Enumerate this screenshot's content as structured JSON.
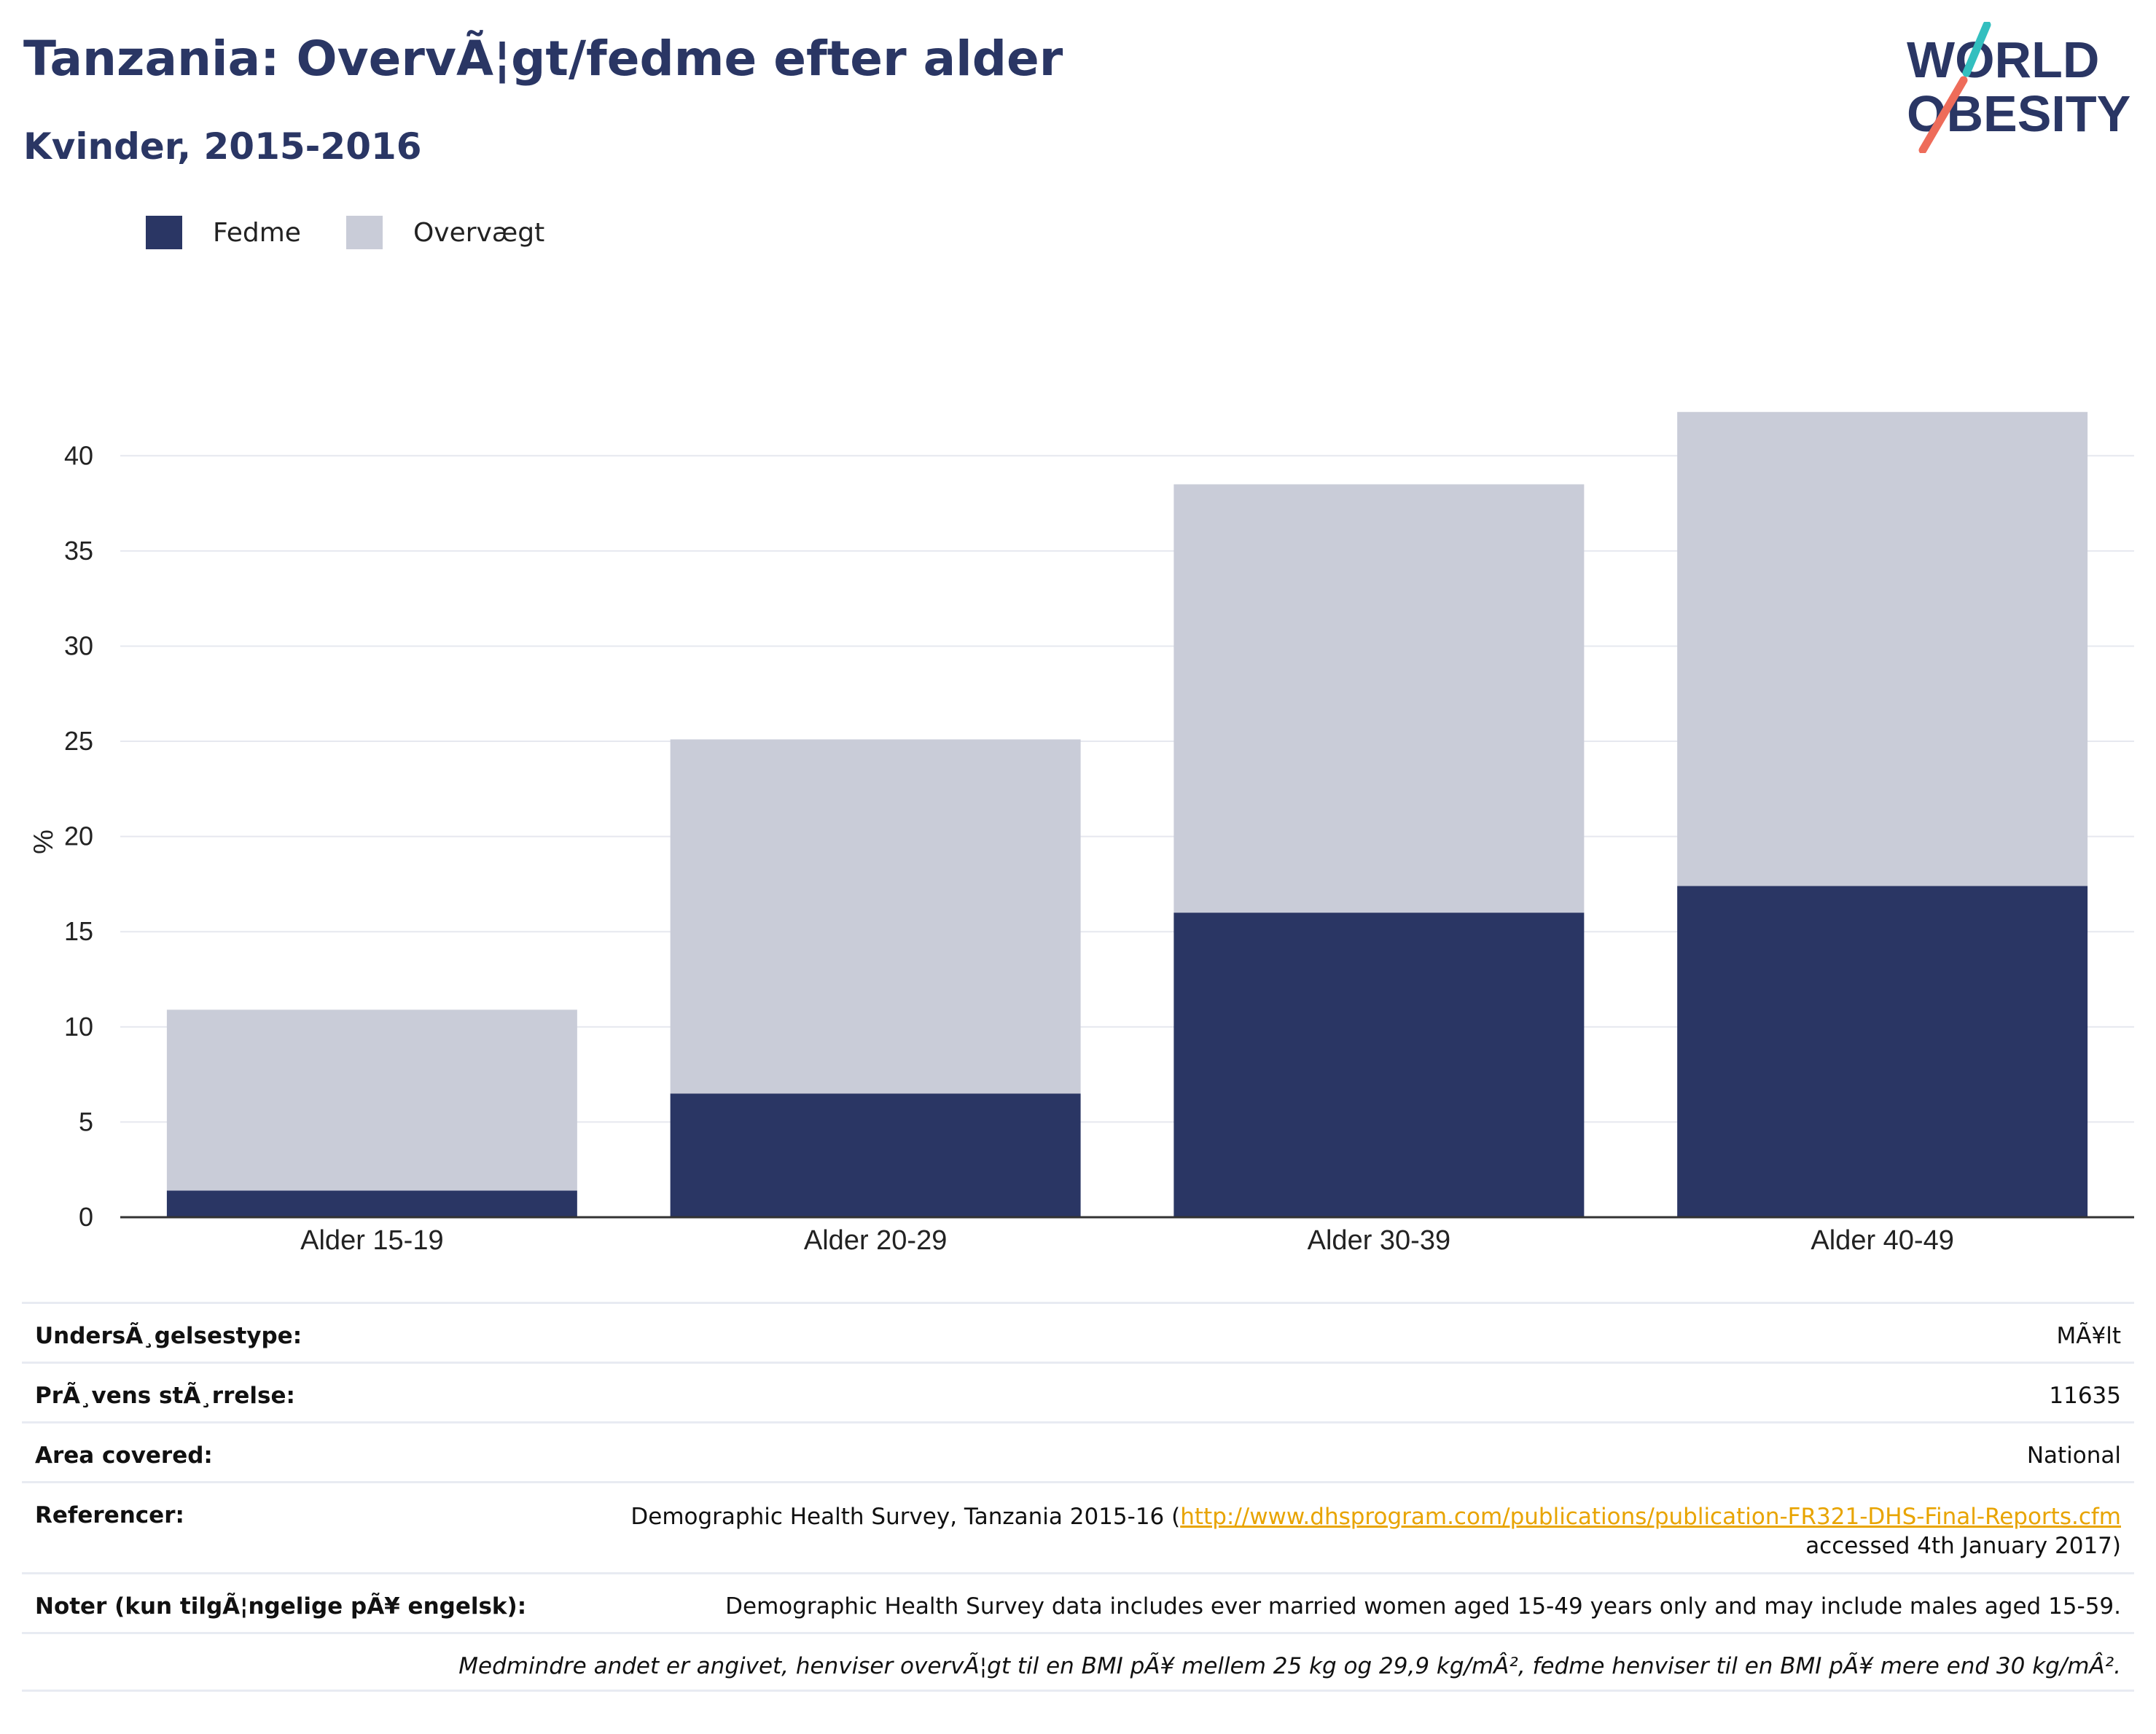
{
  "header": {
    "title": "Tanzania: OvervÃ¦gt/fedme efter alder",
    "subtitle": "Kvinder, 2015-2016",
    "logo_text_line1": "WORLD",
    "logo_text_line2": "OBESITY"
  },
  "legend": {
    "items": [
      {
        "label": "Fedme",
        "color": "#2a3664"
      },
      {
        "label": "Overvægt",
        "color": "#c9ccd8"
      }
    ]
  },
  "chart_data": {
    "type": "bar",
    "stacked": true,
    "categories": [
      "Alder 15-19",
      "Alder 20-29",
      "Alder 30-39",
      "Alder 40-49"
    ],
    "series": [
      {
        "name": "Fedme",
        "color": "#2a3664",
        "values": [
          1.4,
          6.5,
          16.0,
          17.4
        ]
      },
      {
        "name": "Overvægt",
        "color": "#c9ccd8",
        "values": [
          9.5,
          18.6,
          22.5,
          24.9
        ]
      }
    ],
    "ylabel": "%",
    "ylim": [
      0,
      42.5
    ],
    "yticks": [
      0,
      5,
      10,
      15,
      20,
      25,
      30,
      35,
      40
    ],
    "grid": true,
    "legend_position": "top-left"
  },
  "info": {
    "survey_type_label": "UndersÃ¸gelsestype:",
    "survey_type_value": "MÃ¥lt",
    "sample_size_label": "PrÃ¸vens stÃ¸rrelse:",
    "sample_size_value": "11635",
    "area_label": "Area covered:",
    "area_value": "National",
    "references_label": "Referencer:",
    "references_text_before": "Demographic Health Survey, Tanzania 2015-16 (",
    "references_link": "http://www.dhsprogram.com/publications/publication-FR321-DHS-Final-Reports.cfm",
    "references_text_after": "accessed 4th January 2017)",
    "notes_label": "Noter (kun tilgÃ¦ngelige pÃ¥ engelsk):",
    "notes_value": "Demographic Health Survey data includes ever married women aged 15-49 years only and may include males aged 15-59.",
    "footnote": "Medmindre andet er angivet, henviser overvÃ¦gt til en BMI pÃ¥ mellem 25 kg og 29,9 kg/mÂ², fedme henviser til en BMI pÃ¥ mere end 30 kg/mÂ²."
  }
}
